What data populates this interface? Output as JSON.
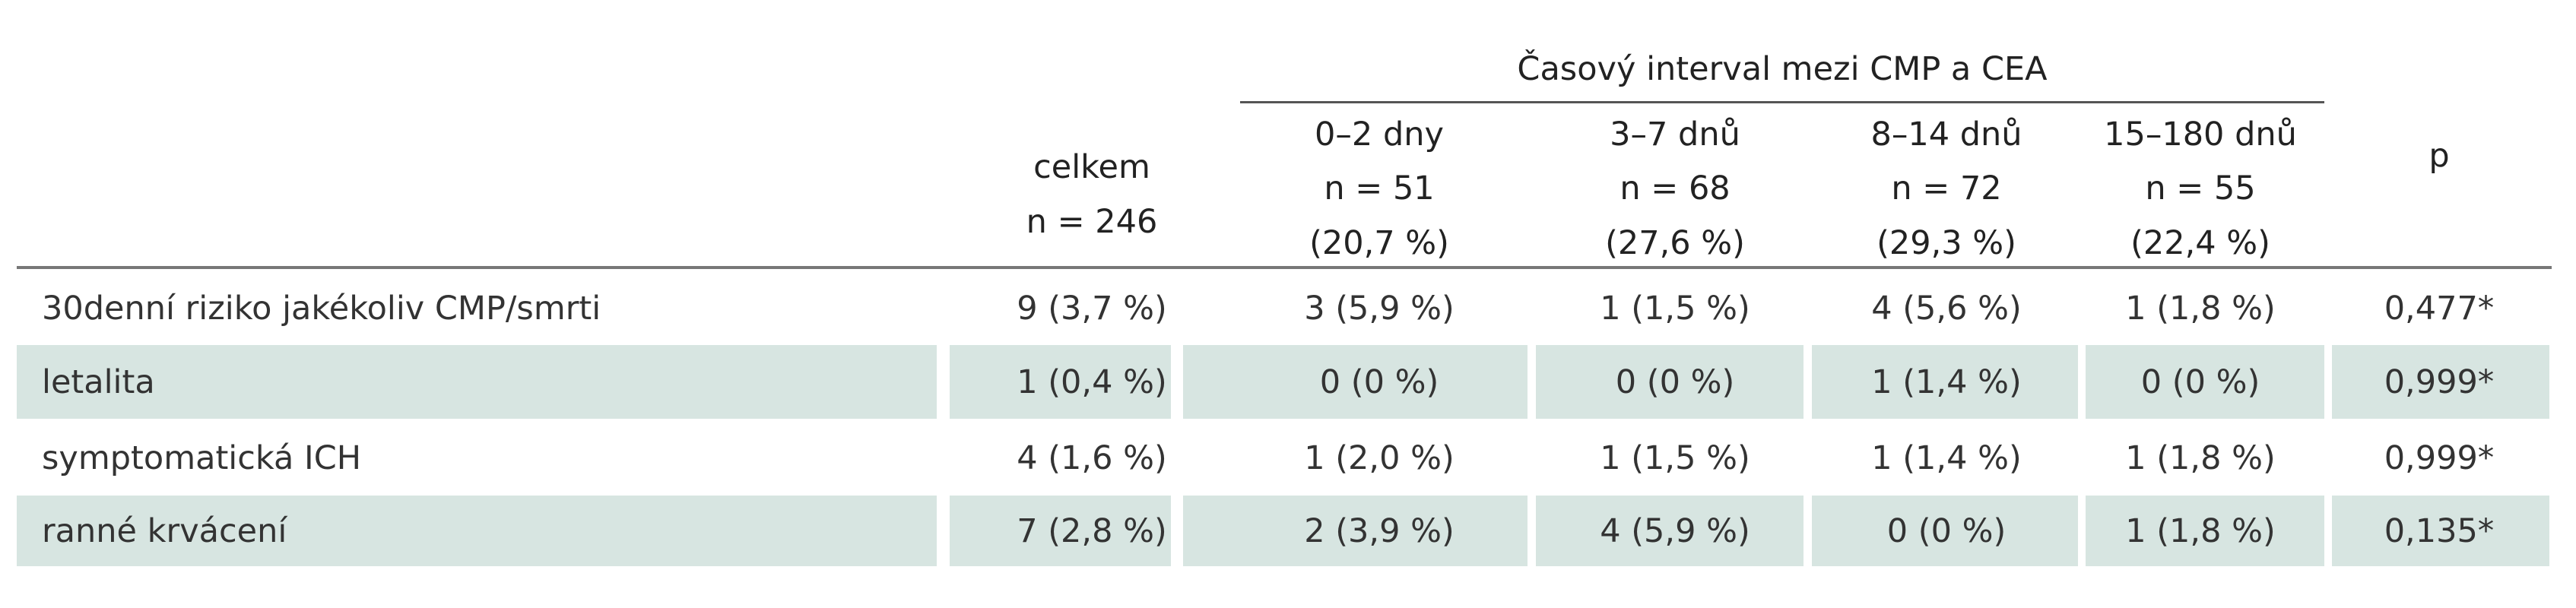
{
  "table": {
    "group_header": "Časový interval mezi CMP a CEA",
    "columns": [
      [
        "celkem",
        "n = 246"
      ],
      [
        "0–2 dny",
        "n = 51",
        "(20,7 %)"
      ],
      [
        "3–7 dnů",
        "n = 68",
        "(27,6 %)"
      ],
      [
        "8–14 dnů",
        "n = 72",
        "(29,3 %)"
      ],
      [
        "15–180 dnů",
        "n = 55",
        "(22,4 %)"
      ],
      [
        "p"
      ]
    ],
    "rows": [
      [
        "30denní riziko jakékoliv CMP/smrti",
        "9 (3,7 %)",
        "3 (5,9 %)",
        "1 (1,5 %)",
        "4 (5,6 %)",
        "1 (1,8 %)",
        "0,477*"
      ],
      [
        "letalita",
        "1 (0,4 %)",
        "0 (0 %)",
        "0 (0 %)",
        "1 (1,4 %)",
        "0 (0 %)",
        "0,999*"
      ],
      [
        "symptomatická ICH",
        "4 (1,6 %)",
        "1 (2,0 %)",
        "1 (1,5 %)",
        "1 (1,4 %)",
        "1 (1,8 %)",
        "0,999*"
      ],
      [
        "ranné krvácení",
        "7 (2,8 %)",
        "2 (3,9 %)",
        "4 (5,9 %)",
        "0 (0 %)",
        "1 (1,8 %)",
        "0,135*"
      ]
    ]
  }
}
